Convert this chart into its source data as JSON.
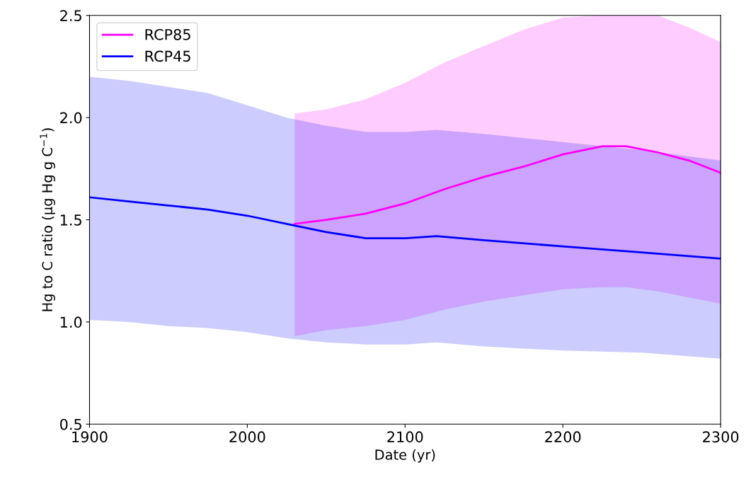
{
  "chart_data": {
    "type": "line",
    "xlabel": "Date (yr)",
    "ylabel": "Hg to C ratio (µg Hg g C$^{−1}$)",
    "xlim": [
      1900,
      2300
    ],
    "xticks": [
      1900,
      2000,
      2100,
      2200,
      2300
    ],
    "ylim": [
      0.5,
      2.5
    ],
    "yticks": [
      0.5,
      {
        "value": 1.0,
        "label": "1.0"
      },
      1.5,
      {
        "value": 2.0,
        "label": "2.0"
      },
      2.5
    ],
    "grid": false,
    "legend": "top left",
    "series": [
      {
        "name": "RCP85",
        "color": "#ff00ff",
        "x": [
          2030,
          2050,
          2075,
          2100,
          2125,
          2150,
          2175,
          2200,
          2225,
          2240,
          2260,
          2280,
          2300
        ],
        "values": [
          1.48,
          1.5,
          1.53,
          1.58,
          1.65,
          1.71,
          1.76,
          1.82,
          1.86,
          1.86,
          1.83,
          1.79,
          1.73
        ],
        "lower": [
          0.93,
          0.96,
          0.98,
          1.01,
          1.06,
          1.1,
          1.13,
          1.16,
          1.17,
          1.17,
          1.15,
          1.12,
          1.09
        ],
        "upper": [
          2.02,
          2.04,
          2.09,
          2.17,
          2.27,
          2.35,
          2.43,
          2.49,
          2.5,
          2.5,
          2.5,
          2.44,
          2.37
        ]
      },
      {
        "name": "RCP45",
        "color": "#0000ff",
        "x": [
          1900,
          1925,
          1950,
          1975,
          2000,
          2025,
          2050,
          2075,
          2100,
          2120,
          2150,
          2200,
          2250,
          2300
        ],
        "values": [
          1.61,
          1.59,
          1.57,
          1.55,
          1.52,
          1.48,
          1.44,
          1.41,
          1.41,
          1.42,
          1.4,
          1.37,
          1.34,
          1.31
        ],
        "lower": [
          1.01,
          1.0,
          0.98,
          0.97,
          0.95,
          0.92,
          0.9,
          0.89,
          0.89,
          0.9,
          0.88,
          0.86,
          0.85,
          0.82
        ],
        "upper": [
          2.2,
          2.18,
          2.15,
          2.12,
          2.06,
          2.0,
          1.96,
          1.93,
          1.93,
          1.94,
          1.92,
          1.88,
          1.84,
          1.79
        ]
      }
    ]
  }
}
